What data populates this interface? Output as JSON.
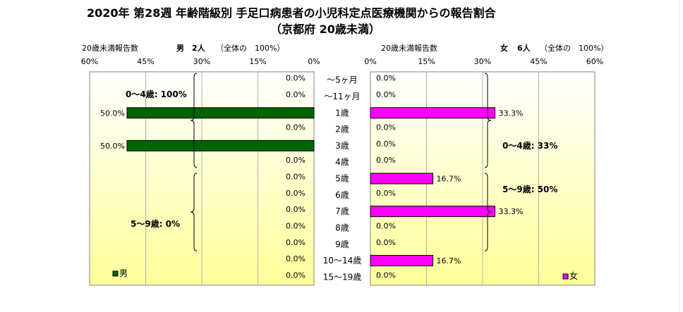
{
  "title": {
    "line1": "2020年 第28週 年齢階級別 手足口病患者の小児科定点医療機関からの報告割合",
    "line2": "（京都府 20歳未満）"
  },
  "left_header": {
    "caption": "20歳未満報告数",
    "sex": "男",
    "count": "2人",
    "total": "（全体の　100%）"
  },
  "right_header": {
    "caption": "20歳未満報告数",
    "sex": "女",
    "count": "6人",
    "total": "（全体の　100%）"
  },
  "colors": {
    "male": "#006400",
    "female": "#ff00ff"
  },
  "chart_data": {
    "type": "bar",
    "categories": [
      "～5ヶ月",
      "～11ヶ月",
      "1歳",
      "2歳",
      "3歳",
      "4歳",
      "5歳",
      "6歳",
      "7歳",
      "8歳",
      "9歳",
      "10～14歳",
      "15～19歳"
    ],
    "axis_ticks": [
      "60%",
      "45%",
      "30%",
      "15%",
      "0%",
      "0%",
      "15%",
      "30%",
      "45%",
      "60%"
    ],
    "xlim": [
      0,
      60
    ],
    "series": [
      {
        "name": "男",
        "side": "left",
        "values": [
          0,
          0,
          50,
          0,
          50,
          0,
          0,
          0,
          0,
          0,
          0,
          0,
          0
        ],
        "labels": [
          "0.0%",
          "0.0%",
          "50.0%",
          "0.0%",
          "50.0%",
          "0.0%",
          "0.0%",
          "0.0%",
          "0.0%",
          "0.0%",
          "0.0%",
          "0.0%",
          "0.0%"
        ]
      },
      {
        "name": "女",
        "side": "right",
        "values": [
          0,
          0,
          33.3,
          0,
          0,
          0,
          16.7,
          0,
          33.3,
          0,
          0,
          16.7,
          0
        ],
        "labels": [
          "0.0%",
          "0.0%",
          "33.3%",
          "0.0%",
          "0.0%",
          "0.0%",
          "16.7%",
          "0.0%",
          "33.3%",
          "0.0%",
          "0.0%",
          "16.7%",
          "0.0%"
        ]
      }
    ],
    "annotations": {
      "left": [
        "0～4歳: 100%",
        "5～9歳: 0%"
      ],
      "right": [
        "0～4歳: 33%",
        "5～9歳: 50%"
      ]
    }
  }
}
